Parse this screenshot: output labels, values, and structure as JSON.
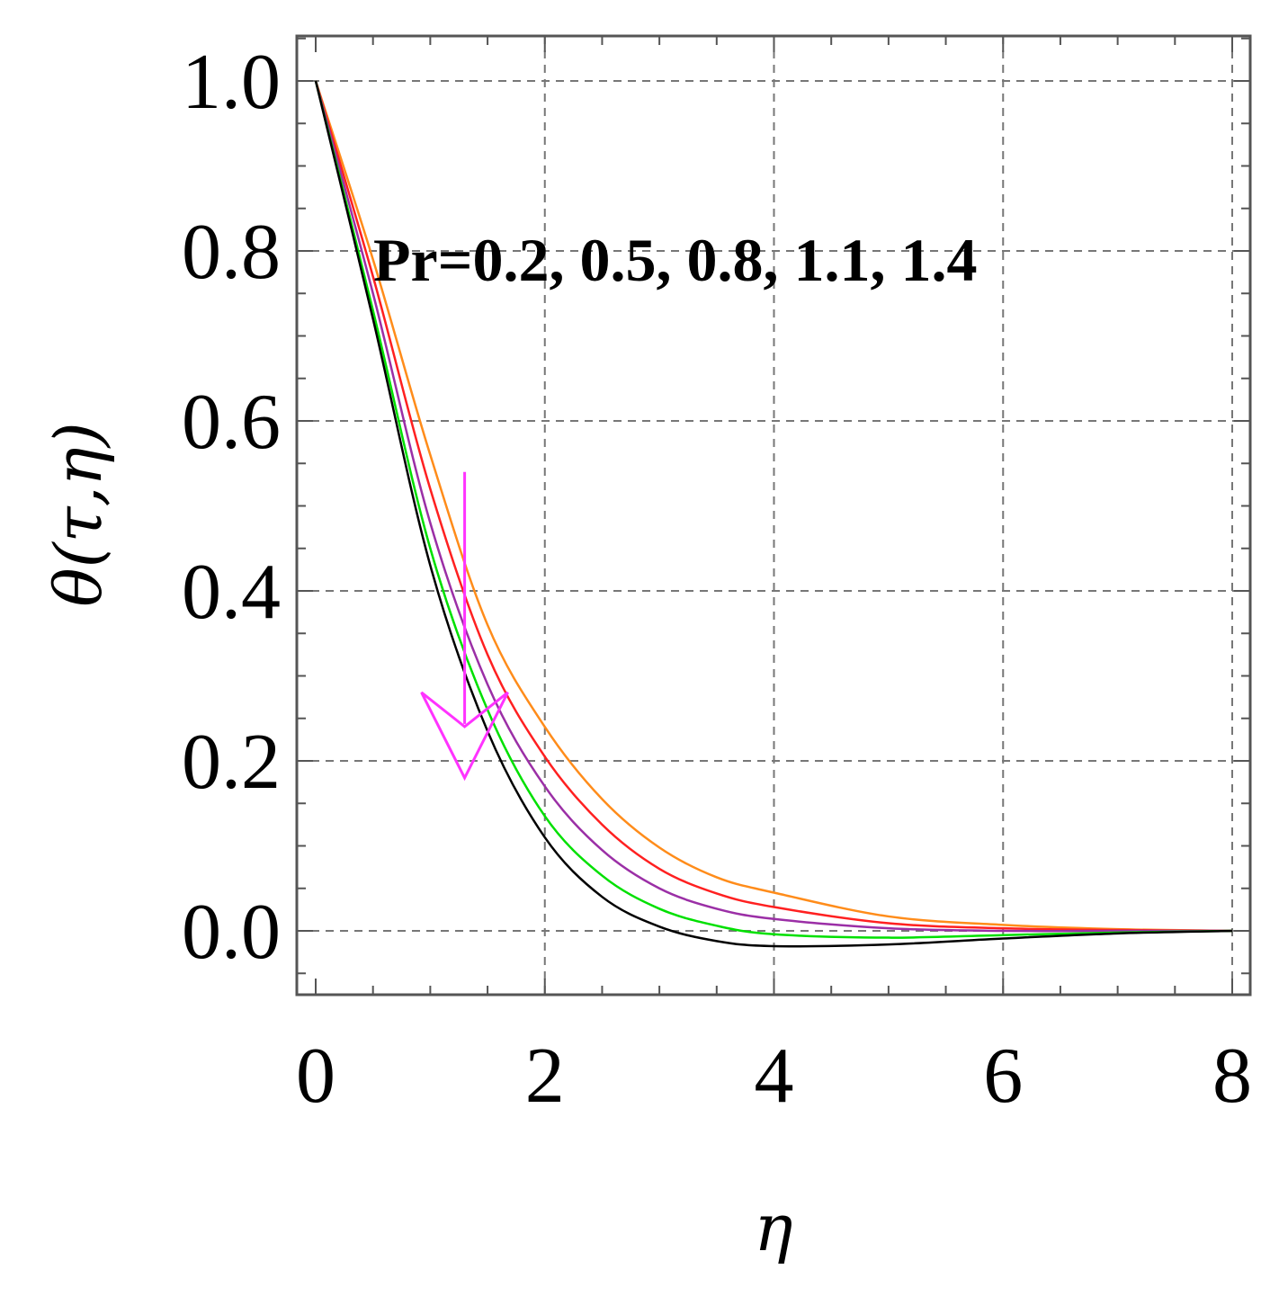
{
  "chart_data": {
    "type": "line",
    "title": "",
    "xlabel": "η",
    "ylabel": "θ(τ,η)",
    "xlim": [
      0,
      8
    ],
    "ylim": [
      -0.08,
      1.05
    ],
    "xticks": [
      0,
      2,
      4,
      6,
      8
    ],
    "xtick_labels": [
      "0",
      "2",
      "4",
      "6",
      "8"
    ],
    "yticks": [
      0.0,
      0.2,
      0.4,
      0.6,
      0.8,
      1.0
    ],
    "ytick_labels": [
      "0.0",
      "0.2",
      "0.4",
      "0.6",
      "0.8",
      "1.0"
    ],
    "grid": true,
    "legend": "none",
    "annotation": {
      "text": "Pr=0.2, 0.5, 0.8, 1.1, 1.4",
      "x": 0.5,
      "y": 0.8
    },
    "arrow": {
      "color": "#ff33ff",
      "from": [
        1.3,
        0.54
      ],
      "to": [
        1.3,
        0.18
      ]
    },
    "x": [
      0,
      0.5,
      1,
      1.5,
      2,
      2.5,
      3,
      3.5,
      4,
      5,
      6,
      7,
      8
    ],
    "series": [
      {
        "color": "#ff8c1a",
        "values": [
          1.0,
          0.79,
          0.56,
          0.36,
          0.24,
          0.155,
          0.098,
          0.063,
          0.045,
          0.017,
          0.007,
          0.002,
          0.0
        ]
      },
      {
        "color": "#ff2020",
        "values": [
          1.0,
          0.77,
          0.52,
          0.325,
          0.205,
          0.125,
          0.073,
          0.044,
          0.028,
          0.009,
          0.003,
          0.001,
          0.0
        ]
      },
      {
        "color": "#9b2fa6",
        "values": [
          1.0,
          0.75,
          0.48,
          0.29,
          0.17,
          0.095,
          0.05,
          0.026,
          0.014,
          0.003,
          0.0,
          0.0,
          0.0
        ]
      },
      {
        "color": "#00e000",
        "values": [
          1.0,
          0.73,
          0.45,
          0.26,
          0.135,
          0.065,
          0.026,
          0.006,
          -0.004,
          -0.008,
          -0.005,
          -0.002,
          0.0
        ]
      },
      {
        "color": "#000000",
        "values": [
          1.0,
          0.72,
          0.43,
          0.235,
          0.11,
          0.04,
          0.005,
          -0.012,
          -0.018,
          -0.016,
          -0.009,
          -0.003,
          0.0
        ]
      }
    ]
  }
}
